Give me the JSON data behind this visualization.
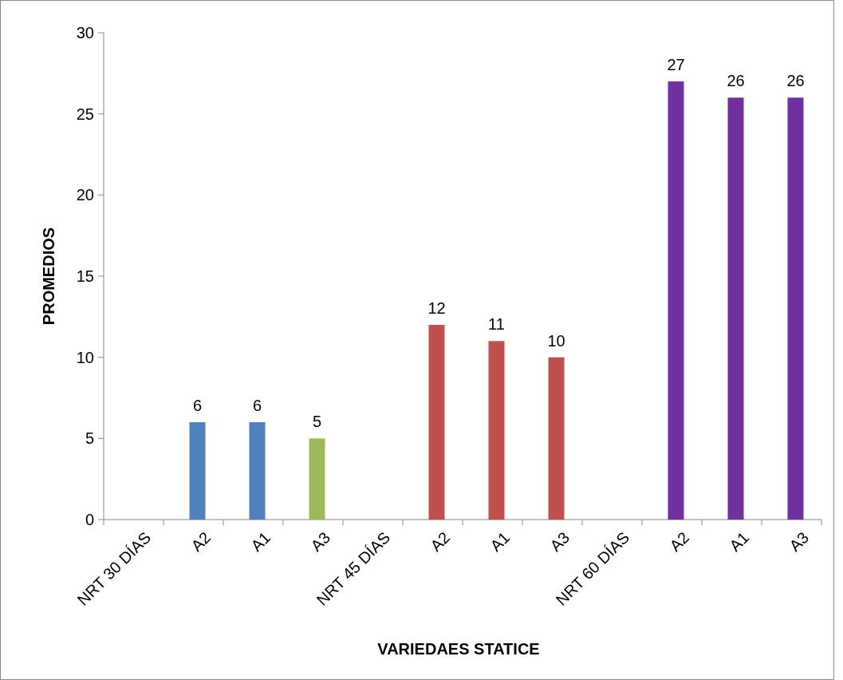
{
  "chart_data": {
    "type": "bar",
    "xlabel": "VARIEDAES STATICE",
    "ylabel": "PROMEDIOS",
    "categories": [
      "NRT 30 DÍAS",
      "A2",
      "A1",
      "A3",
      "NRT 45 DÍAS",
      "A2",
      "A1",
      "A3",
      "NRT 60 DÍAS",
      "A2",
      "A1",
      "A3"
    ],
    "values": [
      null,
      6,
      6,
      5,
      null,
      12,
      11,
      10,
      null,
      27,
      26,
      26
    ],
    "colors": [
      null,
      "#4f81bd",
      "#4f81bd",
      "#9bbb59",
      null,
      "#c0504d",
      "#c0504d",
      "#c0504d",
      null,
      "#7030a0",
      "#7030a0",
      "#7030a0"
    ],
    "ylim": [
      0,
      30
    ],
    "yticks": [
      0,
      5,
      10,
      15,
      20,
      25,
      30
    ],
    "data_labels": true,
    "grid": false
  }
}
